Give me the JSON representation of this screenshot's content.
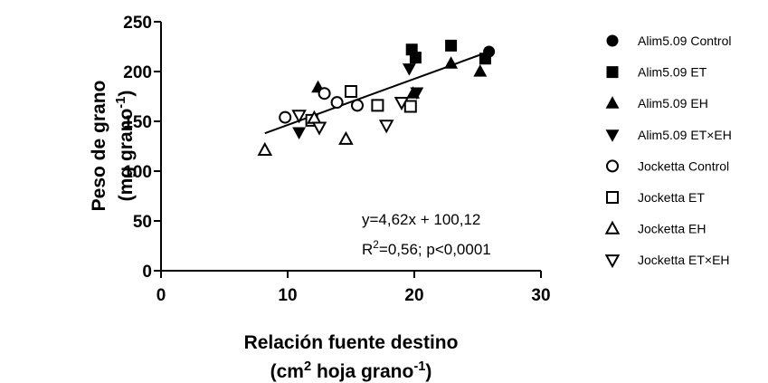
{
  "chart_data": {
    "type": "scatter",
    "xlabel": [
      [
        "Relación fuente destino"
      ],
      [
        "(cm",
        "2",
        " hoja grano",
        "-1",
        ")"
      ]
    ],
    "ylabel": [
      [
        "Peso de grano"
      ],
      [
        "(mg grano",
        "-1",
        ")"
      ]
    ],
    "xlim": [
      0,
      30
    ],
    "xticks": [
      0,
      10,
      20,
      30
    ],
    "ylim": [
      0,
      250
    ],
    "yticks": [
      0,
      50,
      100,
      150,
      200,
      250
    ],
    "series": [
      {
        "name": "Alim5.09 Control",
        "marker": "circle",
        "filled": true,
        "color": "#000000",
        "x": [
          25.9
        ],
        "values": [
          220
        ]
      },
      {
        "name": "Alim5.09 ET",
        "marker": "square",
        "filled": true,
        "color": "#000000",
        "x": [
          19.8,
          22.9,
          25.6,
          20.1
        ],
        "values": [
          222,
          226,
          213,
          214
        ]
      },
      {
        "name": "Alim5.09 EH",
        "marker": "triangle-up",
        "filled": true,
        "color": "#000000",
        "x": [
          12.4,
          19.9,
          22.9,
          25.2
        ],
        "values": [
          184,
          178,
          208,
          200
        ]
      },
      {
        "name": "Alim5.09 ET×EH",
        "marker": "triangle-down",
        "filled": true,
        "color": "#000000",
        "x": [
          10.9,
          19.6,
          20.2
        ],
        "values": [
          139,
          203,
          179
        ]
      },
      {
        "name": "Jocketta Control",
        "marker": "circle",
        "filled": false,
        "color": "#000000",
        "x": [
          9.8,
          12.9,
          13.9,
          15.5
        ],
        "values": [
          154,
          178,
          169,
          166
        ]
      },
      {
        "name": "Jocketta ET",
        "marker": "square",
        "filled": false,
        "color": "#000000",
        "x": [
          15.0,
          17.1,
          19.7,
          11.9
        ],
        "values": [
          180,
          166,
          165,
          151
        ]
      },
      {
        "name": "Jocketta EH",
        "marker": "triangle-up",
        "filled": false,
        "color": "#000000",
        "x": [
          8.2,
          14.6,
          12.1
        ],
        "values": [
          121,
          132,
          153
        ]
      },
      {
        "name": "Jocketta ET×EH",
        "marker": "triangle-down",
        "filled": false,
        "color": "#000000",
        "x": [
          10.9,
          12.5,
          19.0,
          17.8
        ],
        "values": [
          156,
          144,
          169,
          146
        ]
      }
    ],
    "trend": {
      "x": [
        8.2,
        25.9
      ],
      "values": [
        138,
        220
      ]
    },
    "annotations": [
      [
        "y=4,62x + 100,12"
      ],
      [
        "R",
        "2",
        "=0,56; p<0,0001"
      ]
    ]
  }
}
